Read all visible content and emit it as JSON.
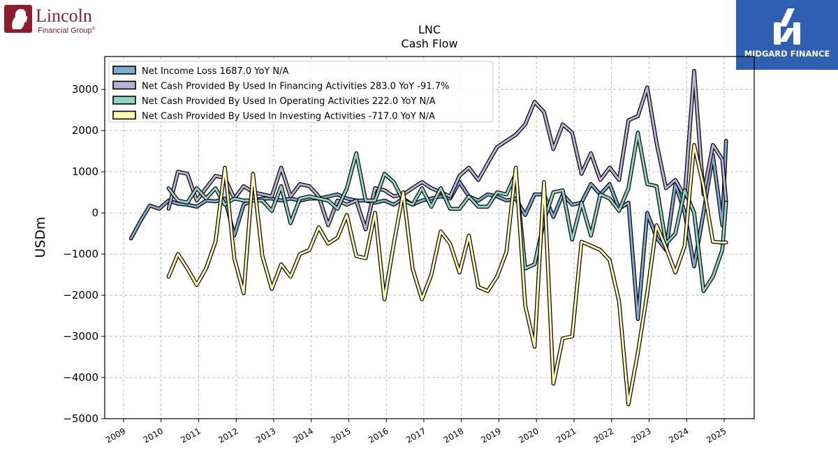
{
  "logos": {
    "left": {
      "line1": "Lincoln",
      "line2": "Financial Group",
      "mark": "®",
      "color": "#8c1d2f"
    },
    "right": {
      "text": "MIDGARD FINANCE",
      "bg": "#2f5fb0"
    }
  },
  "chart_data": {
    "type": "line",
    "title": "LNC",
    "subtitle": "Cash Flow",
    "xlabel": "",
    "ylabel": "USDm",
    "xlim": [
      2008.5,
      2025.8
    ],
    "ylim": [
      -5000,
      3800
    ],
    "yticks": [
      -5000,
      -4000,
      -3000,
      -2000,
      -1000,
      0,
      1000,
      2000,
      3000
    ],
    "xticks": [
      "2009",
      "2010",
      "2011",
      "2012",
      "2013",
      "2014",
      "2015",
      "2016",
      "2017",
      "2018",
      "2019",
      "2020",
      "2021",
      "2022",
      "2023",
      "2024",
      "2025"
    ],
    "grid": true,
    "legend_position": "top-left",
    "series": [
      {
        "name": "Net Income Loss  1687.0 YoY N/A",
        "color": "#7eaad0",
        "x": [
          2009.2,
          2009.45,
          2009.7,
          2009.95,
          2010.2,
          2010.45,
          2010.7,
          2010.95,
          2011.2,
          2011.45,
          2011.7,
          2011.95,
          2012.2,
          2012.45,
          2012.7,
          2012.95,
          2013.2,
          2013.45,
          2013.7,
          2013.95,
          2014.2,
          2014.45,
          2014.7,
          2014.95,
          2015.2,
          2015.45,
          2015.7,
          2015.95,
          2016.2,
          2016.45,
          2016.7,
          2016.95,
          2017.2,
          2017.45,
          2017.7,
          2017.95,
          2018.2,
          2018.45,
          2018.7,
          2018.95,
          2019.2,
          2019.45,
          2019.7,
          2019.95,
          2020.2,
          2020.45,
          2020.7,
          2020.95,
          2021.2,
          2021.45,
          2021.7,
          2021.95,
          2022.2,
          2022.45,
          2022.7,
          2022.95,
          2023.2,
          2023.45,
          2023.7,
          2023.95,
          2024.2,
          2024.45,
          2024.7,
          2024.95,
          2025.05
        ],
        "y": [
          -620,
          -200,
          180,
          100,
          300,
          220,
          200,
          150,
          300,
          280,
          350,
          -550,
          200,
          300,
          350,
          350,
          300,
          350,
          300,
          350,
          350,
          400,
          450,
          350,
          300,
          300,
          250,
          300,
          200,
          350,
          200,
          300,
          350,
          400,
          350,
          750,
          400,
          300,
          450,
          400,
          300,
          350,
          -50,
          450,
          450,
          -100,
          450,
          200,
          250,
          700,
          450,
          700,
          100,
          250,
          -2580,
          0,
          -600,
          -900,
          700,
          0,
          -1300,
          0,
          1400,
          -300,
          1750
        ]
      },
      {
        "name": "Net Cash Provided By Used In Financing Activities  283.0 YoY -91.7%",
        "color": "#b7b2d6",
        "x": [
          2010.2,
          2010.45,
          2010.7,
          2010.95,
          2011.2,
          2011.45,
          2011.7,
          2011.95,
          2012.2,
          2012.45,
          2012.7,
          2012.95,
          2013.2,
          2013.45,
          2013.7,
          2013.95,
          2014.2,
          2014.45,
          2014.7,
          2014.95,
          2015.2,
          2015.45,
          2015.7,
          2015.95,
          2016.2,
          2016.45,
          2016.7,
          2016.95,
          2017.2,
          2017.45,
          2017.7,
          2017.95,
          2018.2,
          2018.45,
          2018.7,
          2018.95,
          2019.2,
          2019.45,
          2019.7,
          2019.95,
          2020.2,
          2020.45,
          2020.7,
          2020.95,
          2021.2,
          2021.45,
          2021.7,
          2021.95,
          2022.2,
          2022.45,
          2022.7,
          2022.95,
          2023.2,
          2023.45,
          2023.7,
          2023.95,
          2024.2,
          2024.45,
          2024.7,
          2024.95,
          2025.05
        ],
        "y": [
          100,
          1000,
          950,
          300,
          600,
          900,
          850,
          350,
          650,
          500,
          450,
          400,
          1100,
          400,
          700,
          650,
          400,
          -300,
          300,
          200,
          300,
          -400,
          600,
          550,
          400,
          450,
          600,
          750,
          600,
          500,
          400,
          900,
          1100,
          800,
          1200,
          1600,
          1750,
          1900,
          2150,
          2700,
          2450,
          1550,
          2150,
          1950,
          950,
          1450,
          800,
          1100,
          800,
          2250,
          2350,
          3050,
          1700,
          600,
          800,
          400,
          3450,
          450,
          1650,
          1300,
          280
        ]
      },
      {
        "name": "Net Cash Provided By Used In Operating Activities  222.0 YoY N/A",
        "color": "#8fd5c4",
        "x": [
          2010.2,
          2010.45,
          2010.7,
          2010.95,
          2011.2,
          2011.45,
          2011.7,
          2011.95,
          2012.2,
          2012.45,
          2012.7,
          2012.95,
          2013.2,
          2013.45,
          2013.7,
          2013.95,
          2014.2,
          2014.45,
          2014.7,
          2014.95,
          2015.2,
          2015.45,
          2015.7,
          2015.95,
          2016.2,
          2016.45,
          2016.7,
          2016.95,
          2017.2,
          2017.45,
          2017.7,
          2017.95,
          2018.2,
          2018.45,
          2018.7,
          2018.95,
          2019.2,
          2019.45,
          2019.7,
          2019.95,
          2020.2,
          2020.45,
          2020.7,
          2020.95,
          2021.2,
          2021.45,
          2021.7,
          2021.95,
          2022.2,
          2022.45,
          2022.7,
          2022.95,
          2023.2,
          2023.45,
          2023.7,
          2023.95,
          2024.2,
          2024.45,
          2024.7,
          2024.95,
          2025.05
        ],
        "y": [
          600,
          300,
          250,
          600,
          350,
          600,
          200,
          350,
          300,
          300,
          300,
          50,
          650,
          -250,
          350,
          400,
          350,
          300,
          100,
          600,
          1450,
          300,
          300,
          950,
          750,
          300,
          200,
          600,
          150,
          600,
          100,
          100,
          400,
          150,
          150,
          500,
          450,
          950,
          -1350,
          -1250,
          -200,
          500,
          550,
          -650,
          250,
          -550,
          450,
          350,
          50,
          600,
          1950,
          700,
          650,
          -750,
          -500,
          550,
          0,
          -1900,
          -1550,
          -900,
          250
        ]
      },
      {
        "name": "Net Cash Provided By Used In Investing Activities  -717.0 YoY N/A",
        "color": "#fcfaa8",
        "x": [
          2010.2,
          2010.45,
          2010.7,
          2010.95,
          2011.2,
          2011.45,
          2011.7,
          2011.95,
          2012.2,
          2012.45,
          2012.7,
          2012.95,
          2013.2,
          2013.45,
          2013.7,
          2013.95,
          2014.2,
          2014.45,
          2014.7,
          2014.95,
          2015.2,
          2015.45,
          2015.7,
          2015.95,
          2016.2,
          2016.45,
          2016.7,
          2016.95,
          2017.2,
          2017.45,
          2017.7,
          2017.95,
          2018.2,
          2018.45,
          2018.7,
          2018.95,
          2019.2,
          2019.45,
          2019.7,
          2019.95,
          2020.2,
          2020.45,
          2020.7,
          2020.95,
          2021.2,
          2021.45,
          2021.7,
          2021.95,
          2022.2,
          2022.45,
          2022.7,
          2022.95,
          2023.2,
          2023.45,
          2023.7,
          2023.95,
          2024.2,
          2024.45,
          2024.7,
          2024.95,
          2025.05
        ],
        "y": [
          -1550,
          -1000,
          -1350,
          -1750,
          -1350,
          -700,
          1100,
          -1100,
          -1950,
          950,
          -1050,
          -1850,
          -1250,
          -1550,
          -1000,
          -900,
          -350,
          -750,
          -600,
          -50,
          -1050,
          -1100,
          0,
          -2100,
          -750,
          500,
          -1350,
          -2100,
          -1500,
          -450,
          -750,
          -1450,
          -550,
          -1800,
          -1900,
          -1550,
          -950,
          1100,
          -2250,
          -3250,
          750,
          -4150,
          -3050,
          -3000,
          -700,
          -800,
          -900,
          -1150,
          -2150,
          -4650,
          -3400,
          -1950,
          -300,
          -850,
          -1450,
          -800,
          1650,
          650,
          -700,
          -720,
          -717
        ]
      }
    ]
  }
}
